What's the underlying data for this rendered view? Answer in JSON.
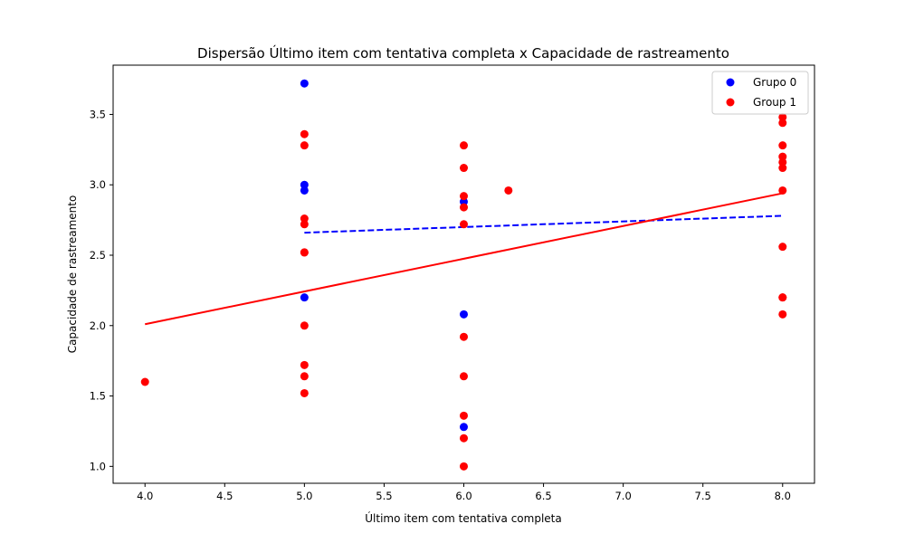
{
  "chart_data": {
    "type": "scatter",
    "title": "Dispersão Último item com tentativa completa x Capacidade de rastreamento",
    "xlabel": "Último item com tentativa completa",
    "ylabel": "Capacidade de rastreamento",
    "xlim": [
      3.8,
      8.2
    ],
    "ylim": [
      0.88,
      3.85
    ],
    "xticks": [
      4.0,
      4.5,
      5.0,
      5.5,
      6.0,
      6.5,
      7.0,
      7.5,
      8.0
    ],
    "yticks": [
      1.0,
      1.5,
      2.0,
      2.5,
      3.0,
      3.5
    ],
    "grid": false,
    "legend_position": "top-right",
    "series": [
      {
        "name": "Grupo 0",
        "color": "#0000ff",
        "points": [
          [
            5,
            3.72
          ],
          [
            5,
            3.0
          ],
          [
            5,
            2.96
          ],
          [
            5,
            2.2
          ],
          [
            6,
            2.88
          ],
          [
            6,
            2.08
          ],
          [
            6,
            1.28
          ]
        ],
        "trendline": {
          "x": [
            5,
            8
          ],
          "y": [
            2.66,
            2.78
          ],
          "style": "dashed"
        }
      },
      {
        "name": "Group 1",
        "color": "#ff0000",
        "points": [
          [
            4,
            1.6
          ],
          [
            5,
            3.36
          ],
          [
            5,
            3.28
          ],
          [
            5,
            2.76
          ],
          [
            5,
            2.72
          ],
          [
            5,
            2.52
          ],
          [
            5,
            2.52
          ],
          [
            5,
            2.0
          ],
          [
            5,
            1.72
          ],
          [
            5,
            1.64
          ],
          [
            5,
            1.52
          ],
          [
            6,
            3.28
          ],
          [
            6,
            3.12
          ],
          [
            6,
            2.92
          ],
          [
            6,
            2.84
          ],
          [
            6,
            2.72
          ],
          [
            6,
            1.92
          ],
          [
            6,
            1.64
          ],
          [
            6,
            1.36
          ],
          [
            6,
            1.2
          ],
          [
            6,
            1.0
          ],
          [
            6.28,
            2.96
          ],
          [
            8,
            3.48
          ],
          [
            8,
            3.44
          ],
          [
            8,
            3.28
          ],
          [
            8,
            3.2
          ],
          [
            8,
            3.16
          ],
          [
            8,
            3.12
          ],
          [
            8,
            2.96
          ],
          [
            8,
            2.56
          ],
          [
            8,
            2.2
          ],
          [
            8,
            2.2
          ],
          [
            8,
            2.08
          ]
        ],
        "trendline": {
          "x": [
            4,
            8
          ],
          "y": [
            2.01,
            2.94
          ],
          "style": "solid"
        }
      }
    ]
  }
}
